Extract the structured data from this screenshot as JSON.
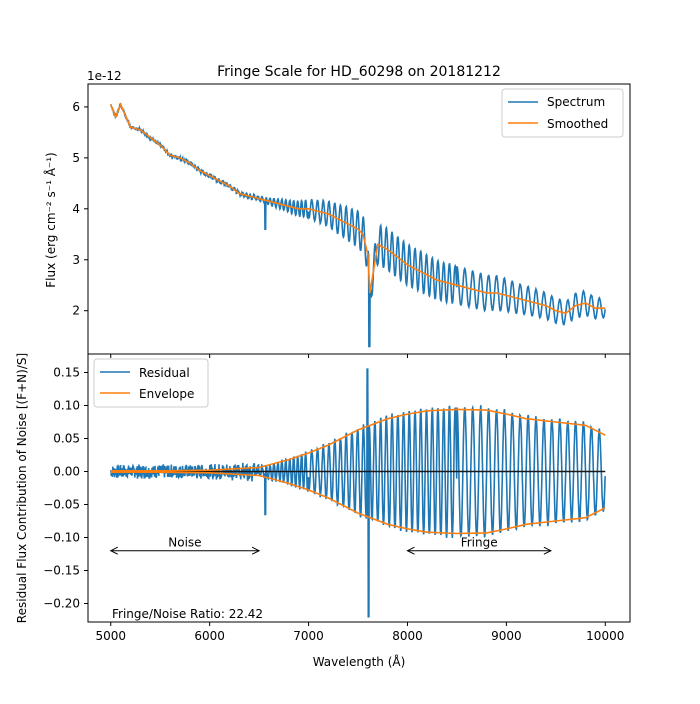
{
  "chart_data": [
    {
      "type": "line",
      "title": "Fringe Scale for HD_60298 on 20181212",
      "xlabel": "",
      "ylabel": "Flux (erg cm⁻² s⁻¹ Å⁻¹)",
      "y_offset_label": "1e-12",
      "xlim": [
        4770,
        10250
      ],
      "ylim": [
        1.15,
        6.45
      ],
      "yticks": [
        "2",
        "3",
        "4",
        "5",
        "6"
      ],
      "legend_position": "top-right",
      "series": [
        {
          "name": "Spectrum",
          "color": "#1f77b4"
        },
        {
          "name": "Smoothed",
          "color": "#ff7f0e",
          "x": [
            5000,
            5050,
            5100,
            5200,
            5300,
            5400,
            5500,
            5600,
            5700,
            5800,
            5900,
            6000,
            6100,
            6200,
            6300,
            6400,
            6500,
            6600,
            6700,
            6800,
            6900,
            7000,
            7100,
            7200,
            7300,
            7400,
            7500,
            7550,
            7600,
            7620,
            7650,
            7700,
            7800,
            7900,
            8000,
            8100,
            8200,
            8300,
            8400,
            8500,
            8600,
            8700,
            8800,
            8900,
            9000,
            9100,
            9200,
            9300,
            9400,
            9500,
            9600,
            9700,
            9800,
            9900,
            10000
          ],
          "y": [
            6.05,
            5.8,
            6.05,
            5.6,
            5.55,
            5.4,
            5.25,
            5.05,
            5.0,
            4.9,
            4.75,
            4.65,
            4.55,
            4.45,
            4.3,
            4.25,
            4.2,
            4.15,
            4.1,
            4.05,
            4.0,
            4.0,
            3.95,
            3.9,
            3.8,
            3.7,
            3.6,
            3.5,
            3.1,
            2.35,
            2.7,
            3.3,
            3.2,
            3.05,
            2.9,
            2.8,
            2.7,
            2.6,
            2.55,
            2.5,
            2.45,
            2.4,
            2.35,
            2.35,
            2.3,
            2.25,
            2.2,
            2.15,
            2.1,
            2.0,
            1.95,
            2.1,
            2.15,
            2.05,
            2.05
          ]
        }
      ]
    },
    {
      "type": "line",
      "title": "",
      "xlabel": "Wavelength (Å)",
      "ylabel": "Residual Flux Contribution of Noise [(F+N)/S]",
      "xlim": [
        4770,
        10250
      ],
      "ylim": [
        -0.228,
        0.178
      ],
      "xticks": [
        5000,
        6000,
        7000,
        8000,
        9000,
        10000
      ],
      "yticks": [
        "0.15",
        "0.10",
        "0.05",
        "0.00",
        "−0.05",
        "−0.10",
        "−0.15",
        "−0.20"
      ],
      "legend_position": "top-left",
      "series": [
        {
          "name": "Residual",
          "color": "#1f77b4"
        },
        {
          "name": "Envelope",
          "color": "#ff7f0e",
          "x": [
            5000,
            5500,
            6000,
            6500,
            6800,
            7000,
            7200,
            7500,
            7800,
            8000,
            8200,
            8500,
            8800,
            9000,
            9200,
            9500,
            9800,
            10000
          ],
          "y": [
            0.001,
            0.001,
            0.002,
            0.006,
            0.018,
            0.028,
            0.04,
            0.063,
            0.08,
            0.087,
            0.092,
            0.094,
            0.093,
            0.087,
            0.08,
            0.075,
            0.07,
            0.055
          ]
        }
      ],
      "annotations": {
        "noise_label": "Noise",
        "noise_range": [
          5000,
          6500
        ],
        "fringe_label": "Fringe",
        "fringe_range": [
          8000,
          9450
        ],
        "arrow_y": -0.12,
        "ratio_text": "Fringe/Noise Ratio: 22.42"
      }
    }
  ]
}
